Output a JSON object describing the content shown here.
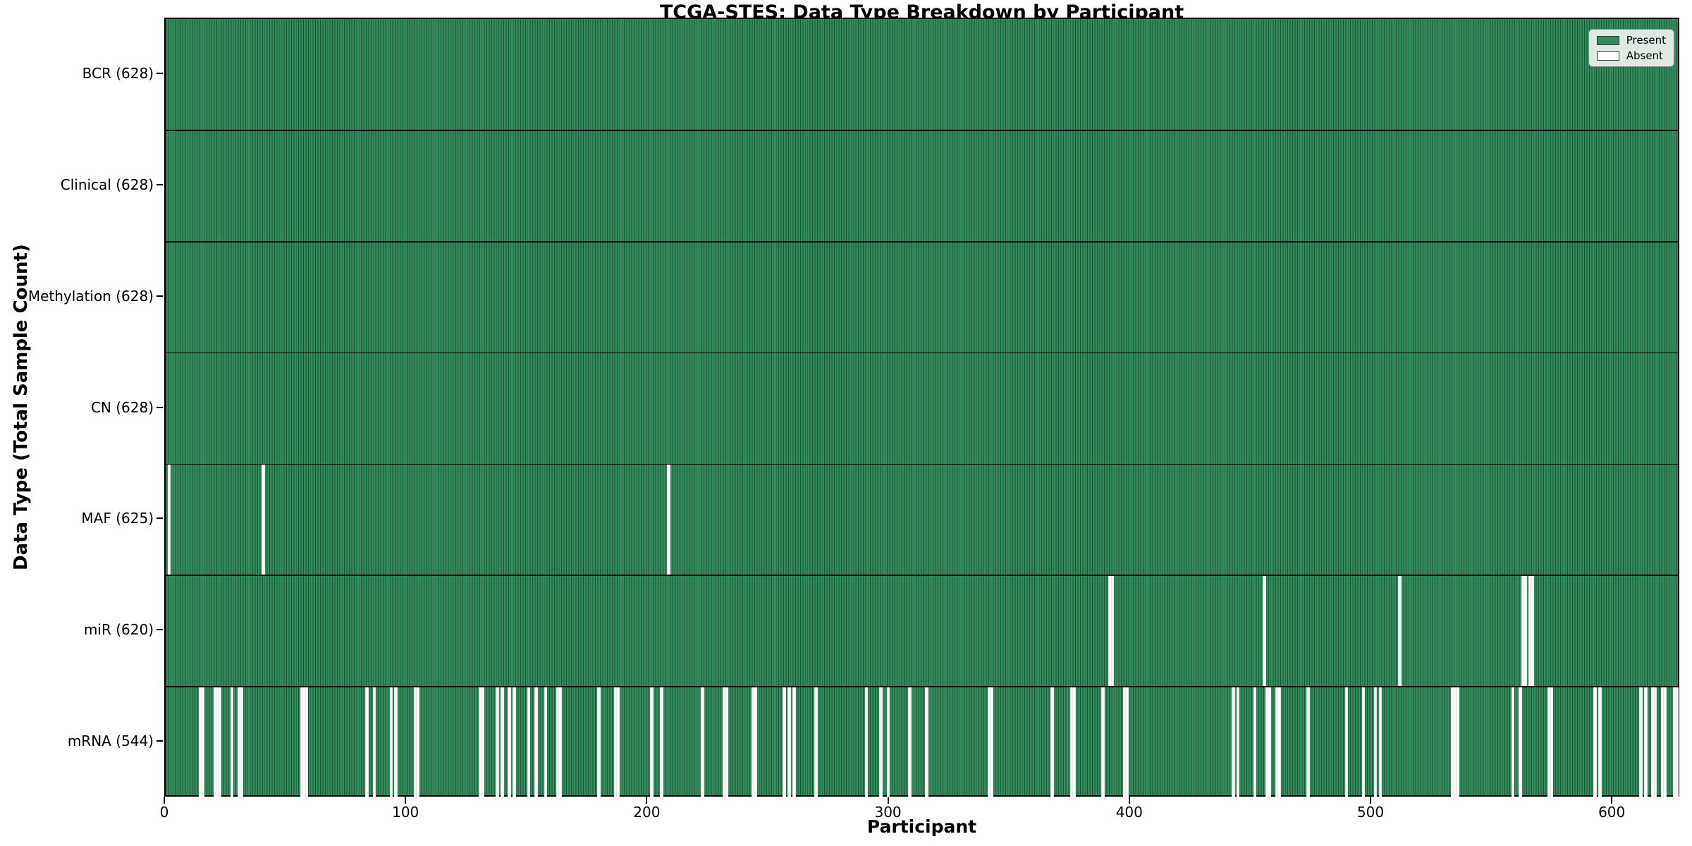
{
  "chart_data": {
    "type": "heatmap",
    "title": "TCGA-STES: Data Type Breakdown by Participant",
    "xlabel": "Participant",
    "ylabel": "Data Type (Total Sample Count)",
    "n_participants": 628,
    "x_ticks": [
      0,
      100,
      200,
      300,
      400,
      500,
      600
    ],
    "legend_position": "upper right",
    "grid": false,
    "colors": {
      "present_fill": "#348c5e",
      "cell_edge": "#1b5434",
      "absent_fill": "#fafafa"
    },
    "legend": [
      {
        "label": "Present",
        "color": "#348c5e"
      },
      {
        "label": "Absent",
        "color": "#ffffff"
      }
    ],
    "rows": [
      {
        "label": "BCR (628)",
        "data_type": "BCR",
        "present_count": 628,
        "absent_participants": []
      },
      {
        "label": "Clinical (628)",
        "data_type": "Clinical",
        "present_count": 628,
        "absent_participants": []
      },
      {
        "label": "Methylation (628)",
        "data_type": "Methylation",
        "present_count": 628,
        "absent_participants": []
      },
      {
        "label": "CN (628)",
        "data_type": "CN",
        "present_count": 628,
        "absent_participants": []
      },
      {
        "label": "MAF (625)",
        "data_type": "MAF",
        "present_count": 625,
        "absent_participants": [
          1,
          40,
          208
        ]
      },
      {
        "label": "miR (620)",
        "data_type": "miR",
        "present_count": 620,
        "absent_participants": [
          391,
          392,
          455,
          511,
          562,
          563,
          565,
          566
        ]
      },
      {
        "label": "mRNA (544)",
        "data_type": "mRNA",
        "present_count": 544,
        "absent_participants": [
          14,
          15,
          20,
          21,
          22,
          27,
          30,
          31,
          56,
          57,
          58,
          83,
          86,
          93,
          95,
          103,
          104,
          130,
          131,
          137,
          139,
          142,
          144,
          150,
          153,
          157,
          162,
          163,
          179,
          186,
          187,
          201,
          205,
          222,
          231,
          232,
          243,
          244,
          256,
          258,
          260,
          269,
          290,
          296,
          299,
          308,
          315,
          341,
          342,
          367,
          375,
          376,
          388,
          397,
          398,
          442,
          444,
          451,
          456,
          457,
          460,
          461,
          473,
          489,
          496,
          501,
          503,
          533,
          534,
          535,
          558,
          561,
          573,
          574,
          592,
          594,
          611,
          613,
          616,
          617,
          620,
          621,
          625,
          626
        ]
      }
    ]
  }
}
